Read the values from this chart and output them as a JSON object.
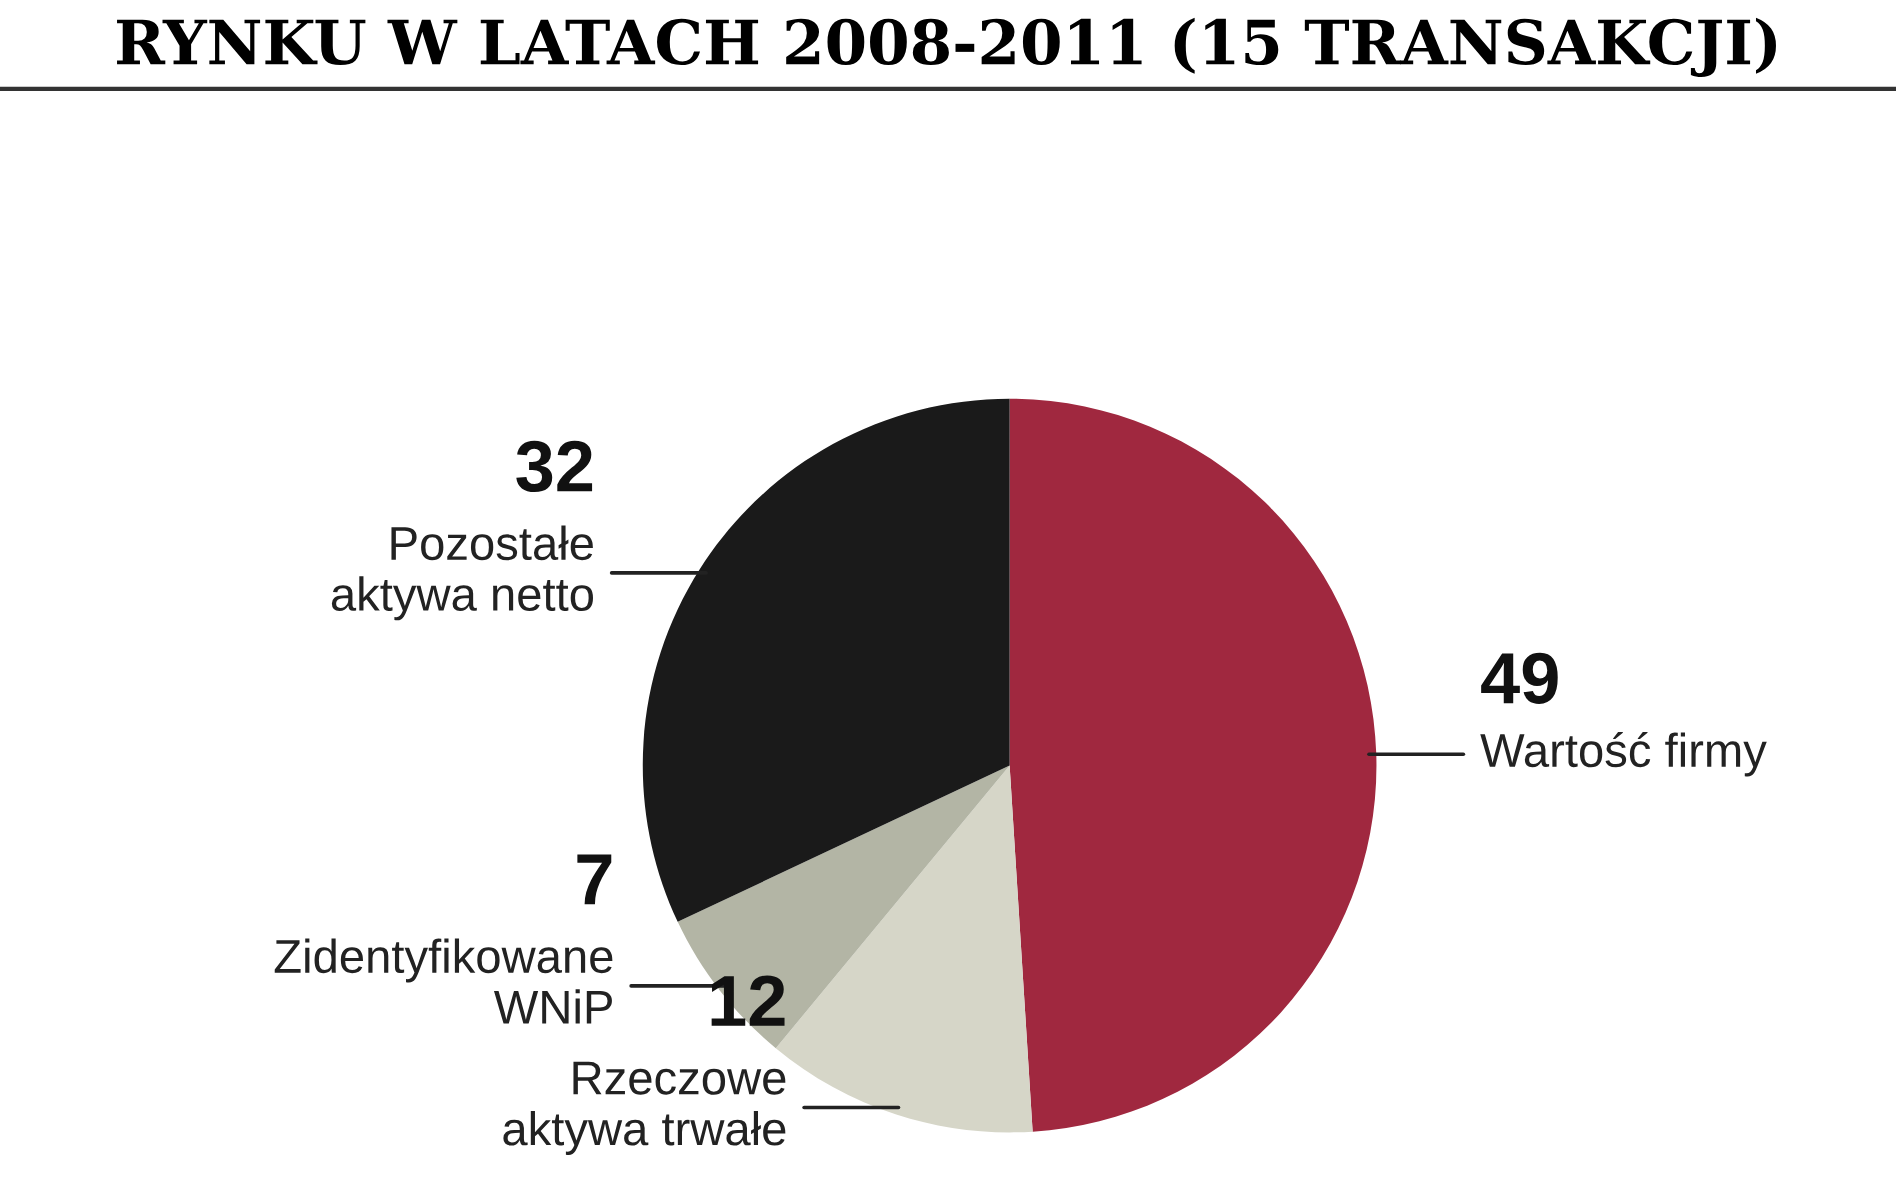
{
  "chart_data": {
    "type": "pie",
    "title": "RYNKU W LATACH 2008-2011 (15 TRANSAKCJI)",
    "categories": [
      "Wartość firmy",
      "Rzeczowe\naktywa trwałe",
      "Zidentyfikowane\nWNiP",
      "Pozostałe\naktywa netto"
    ],
    "values": [
      49,
      12,
      7,
      32
    ],
    "colors": [
      "#a0283f",
      "#d6d6c8",
      "#b3b5a5",
      "#1a1a1a"
    ],
    "data_labels": true
  }
}
